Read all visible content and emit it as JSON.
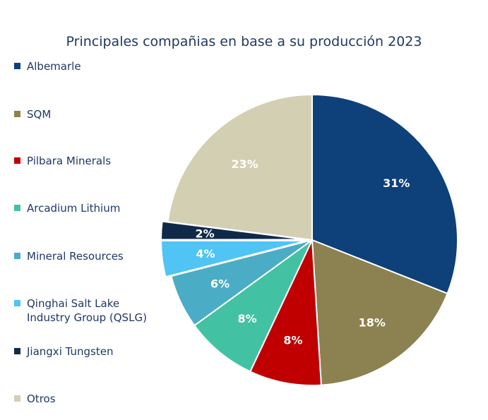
{
  "chart_data": {
    "type": "pie",
    "title": "Principales compañias en base a su producción 2023",
    "legend_position": "left",
    "slices": [
      {
        "label": "Albemarle",
        "value": 31,
        "value_label": "31%",
        "color": "#0e4079"
      },
      {
        "label": "SQM",
        "value": 18,
        "value_label": "18%",
        "color": "#8c8150"
      },
      {
        "label": "Pilbara Minerals",
        "value": 8,
        "value_label": "8%",
        "color": "#c00000"
      },
      {
        "label": "Arcadium Lithium",
        "value": 8,
        "value_label": "8%",
        "color": "#43c1a3"
      },
      {
        "label": "Mineral Resources",
        "value": 6,
        "value_label": "6%",
        "color": "#4bacc6"
      },
      {
        "label": "Qinghai Salt Lake\nIndustry Group (QSLG)",
        "value": 4,
        "value_label": "4%",
        "color": "#4fc4f5"
      },
      {
        "label": "Jiangxi Tungsten",
        "value": 2,
        "value_label": "2%",
        "color": "#0f2a49"
      },
      {
        "label": "Otros",
        "value": 23,
        "value_label": "23%",
        "color": "#d3cfb2"
      }
    ]
  }
}
